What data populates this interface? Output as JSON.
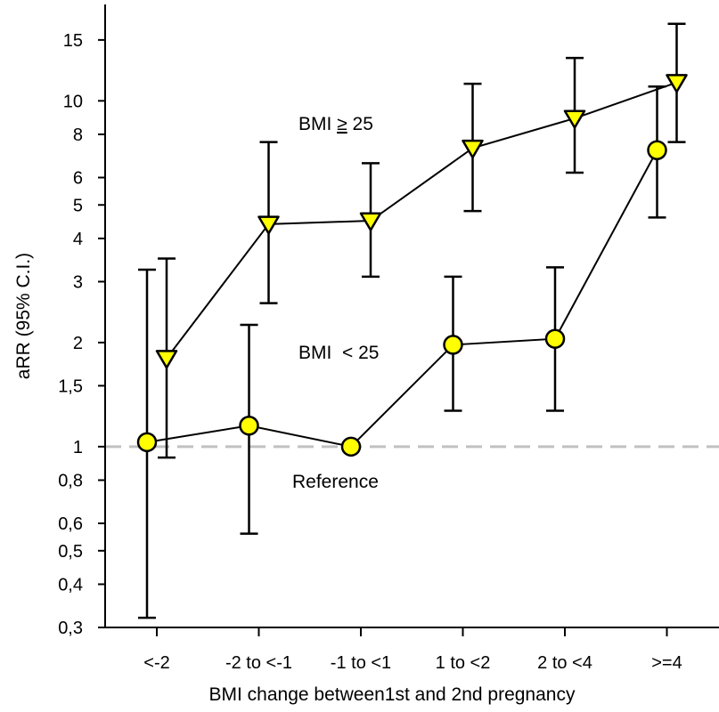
{
  "chart_data": {
    "type": "line",
    "title": "",
    "xlabel": "BMI change between1st and 2nd pregnancy",
    "ylabel": "aRR (95% C.I.)",
    "yscale": "log",
    "ylim": [
      0.3,
      19
    ],
    "categories": [
      "<-2",
      "-2 to <-1",
      "-1 to <1",
      "1 to <2",
      "2 to <4",
      ">=4"
    ],
    "yticks": [
      {
        "value": 0.3,
        "label": "0,3"
      },
      {
        "value": 0.4,
        "label": "0,4"
      },
      {
        "value": 0.5,
        "label": "0,5"
      },
      {
        "value": 0.6,
        "label": "0,6"
      },
      {
        "value": 0.8,
        "label": "0,8"
      },
      {
        "value": 1,
        "label": "1"
      },
      {
        "value": 1.5,
        "label": "1,5"
      },
      {
        "value": 2,
        "label": "2"
      },
      {
        "value": 3,
        "label": "3"
      },
      {
        "value": 4,
        "label": "4"
      },
      {
        "value": 5,
        "label": "5"
      },
      {
        "value": 6,
        "label": "6"
      },
      {
        "value": 8,
        "label": "8"
      },
      {
        "value": 10,
        "label": "10"
      },
      {
        "value": 15,
        "label": "15"
      }
    ],
    "grid": false,
    "reference": {
      "value": 1,
      "label": "Reference",
      "color": "#c0c0c0"
    },
    "series": [
      {
        "label": "BMI < 25",
        "marker": "circle",
        "color": "#ffff00",
        "values": [
          1.03,
          1.15,
          1.0,
          1.97,
          2.05,
          7.2
        ],
        "lower": [
          0.32,
          0.56,
          null,
          1.27,
          1.27,
          4.6
        ],
        "upper": [
          3.25,
          2.25,
          null,
          3.1,
          3.3,
          11.0
        ]
      },
      {
        "label": "BMI ≥ 25",
        "marker": "triangle-down",
        "color": "#ffff00",
        "values": [
          1.8,
          4.4,
          4.5,
          7.3,
          8.9,
          11.3
        ],
        "lower": [
          0.93,
          2.6,
          3.1,
          4.8,
          6.2,
          7.6
        ],
        "upper": [
          3.5,
          7.6,
          6.6,
          11.2,
          13.3,
          16.7
        ]
      }
    ],
    "annotations": {
      "high_label_prefix": "BMI ",
      "high_label_symbol": "≥",
      "high_label_value": " 25",
      "low_label": "BMI  < 25"
    }
  }
}
